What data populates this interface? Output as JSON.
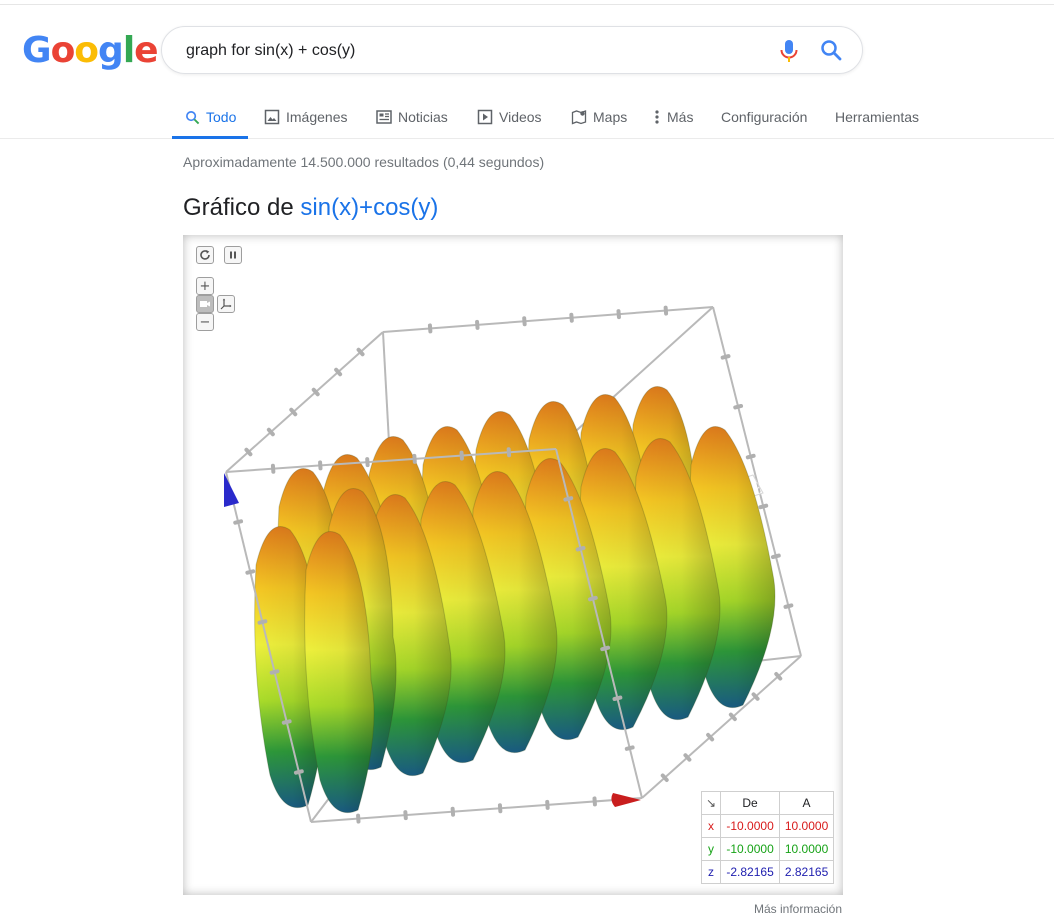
{
  "search": {
    "query": "graph for sin(x) + cos(y)"
  },
  "tabs": [
    {
      "label": "Todo",
      "icon": "search-icon",
      "active": true
    },
    {
      "label": "Imágenes",
      "icon": "image-icon"
    },
    {
      "label": "Noticias",
      "icon": "news-icon"
    },
    {
      "label": "Videos",
      "icon": "play-icon"
    },
    {
      "label": "Maps",
      "icon": "map-pin-icon"
    },
    {
      "label": "Más",
      "icon": "more-vert-icon"
    },
    {
      "label": "Configuración"
    },
    {
      "label": "Herramientas"
    }
  ],
  "results": {
    "stats": "Aproximadamente 14.500.000 resultados (0,44 segundos)"
  },
  "graph": {
    "title_prefix": "Gráfico de",
    "function": "sin(x)+cos(y)",
    "controls": {
      "zoom_in": "+",
      "zoom_out": "−"
    },
    "range_table": {
      "header_icon": "↘",
      "from_label": "De",
      "to_label": "A",
      "rows": [
        {
          "var": "x",
          "from": "-10.0000",
          "to": "10.0000",
          "color": "#d81b1b"
        },
        {
          "var": "y",
          "from": "-10.0000",
          "to": "10.0000",
          "color": "#17a317"
        },
        {
          "var": "z",
          "from": "-2.82165",
          "to": "2.82165",
          "color": "#2020b0"
        }
      ]
    },
    "more_info": "Más información"
  },
  "colors": {
    "accent": "#1a73e8",
    "surface_high": "#e8851f",
    "surface_mid": "#f5e63a",
    "surface_low": "#1d6a8a"
  }
}
